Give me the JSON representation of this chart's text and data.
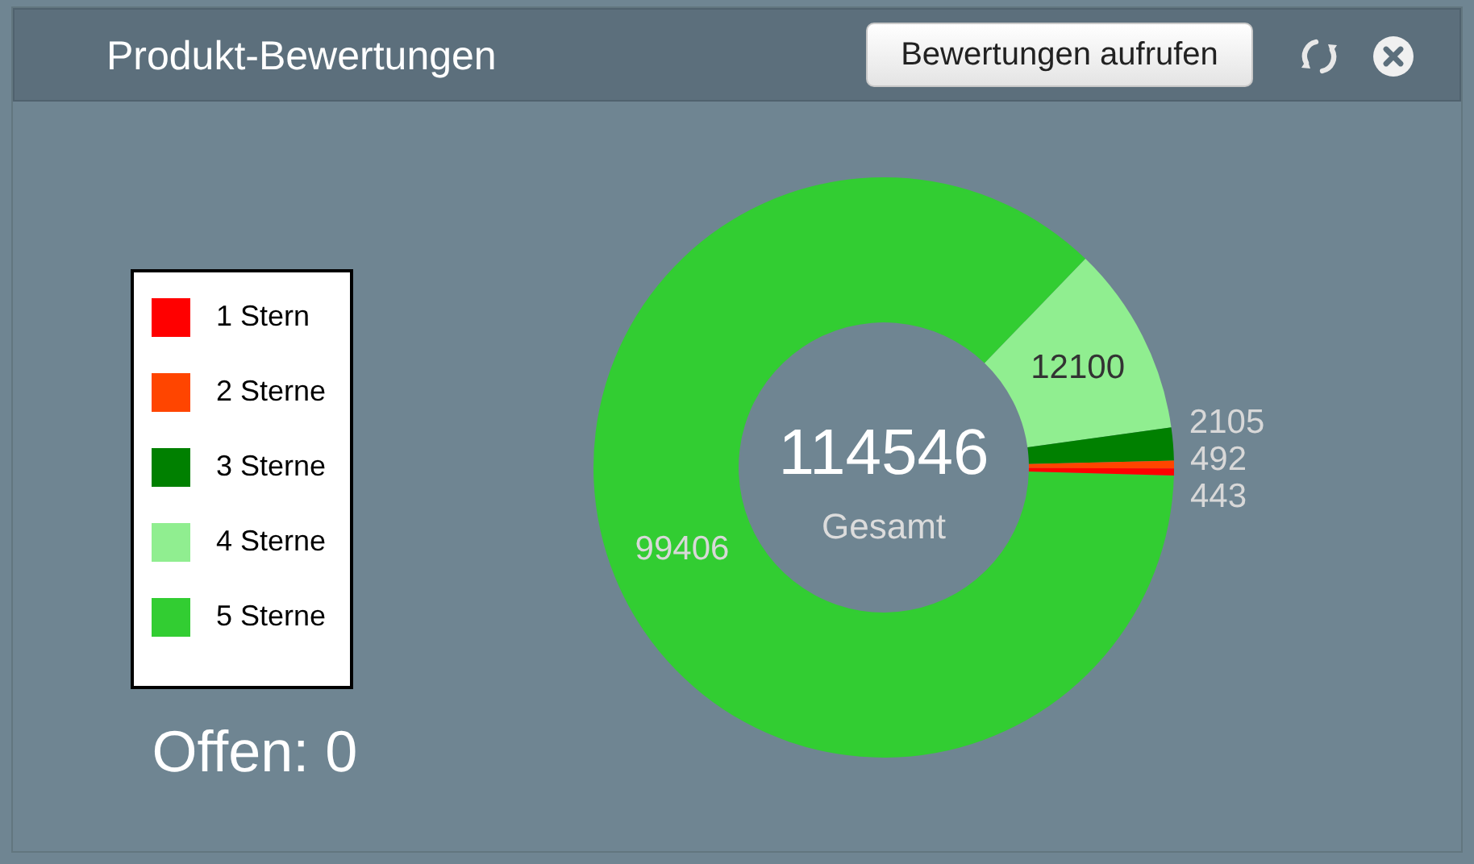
{
  "chart_data": {
    "type": "donut",
    "title": "Produkt-Bewertungen",
    "categories": [
      "1 Stern",
      "2 Sterne",
      "3 Sterne",
      "4 Sterne",
      "5 Sterne"
    ],
    "values": [
      443,
      492,
      2105,
      12100,
      99406
    ],
    "colors": [
      "#ff0000",
      "#ff4500",
      "#008000",
      "#90ee90",
      "#32cd32"
    ],
    "data_labels": true,
    "legend": "left",
    "annotations": [
      "114546",
      "Gesamt",
      "Offen: 0",
      "Bewertungen aufrufen"
    ]
  }
}
